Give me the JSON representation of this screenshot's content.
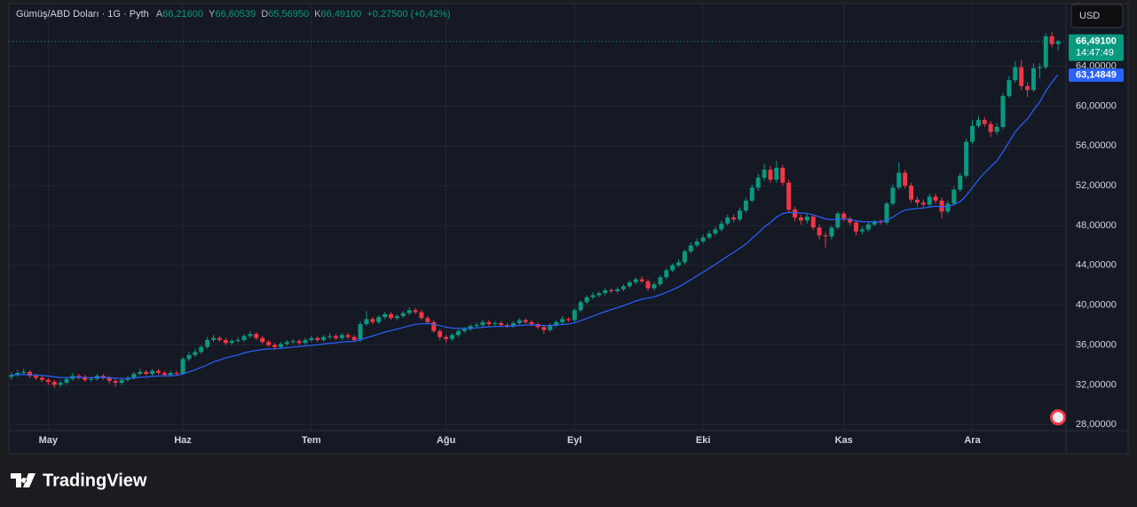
{
  "header": {
    "symbol": "Gümüş/ABD Doları · 1G · Pyth",
    "ohlc": [
      {
        "key": "A",
        "value": "66,21600"
      },
      {
        "key": "Y",
        "value": "66,60539"
      },
      {
        "key": "D",
        "value": "65,56950"
      },
      {
        "key": "K",
        "value": "66,49100"
      }
    ],
    "change": "+0,27500 (+0,42%)",
    "currency": "USD"
  },
  "footer": {
    "logo": "TradingView"
  },
  "chart_data": {
    "type": "candlestick",
    "up_color": "#089981",
    "down_color": "#f23645",
    "grid": true,
    "ylim": [
      27.4,
      70.2
    ],
    "yticks": [
      {
        "value": 28,
        "label": "28,00000"
      },
      {
        "value": 32,
        "label": "32,00000"
      },
      {
        "value": 36,
        "label": "36,00000"
      },
      {
        "value": 40,
        "label": "40,00000"
      },
      {
        "value": 44,
        "label": "44,00000"
      },
      {
        "value": 48,
        "label": "48,00000"
      },
      {
        "value": 52,
        "label": "52,00000"
      },
      {
        "value": 56,
        "label": "56,00000"
      },
      {
        "value": 60,
        "label": "60,00000"
      },
      {
        "value": 64,
        "label": "64,00000"
      }
    ],
    "categories": [
      null,
      null,
      null,
      null,
      null,
      null,
      "May",
      null,
      null,
      null,
      null,
      null,
      null,
      null,
      null,
      null,
      null,
      null,
      null,
      null,
      null,
      null,
      null,
      null,
      null,
      null,
      null,
      null,
      "Haz",
      null,
      null,
      null,
      null,
      null,
      null,
      null,
      null,
      null,
      null,
      null,
      null,
      null,
      null,
      null,
      null,
      null,
      null,
      null,
      null,
      "Tem",
      null,
      null,
      null,
      null,
      null,
      null,
      null,
      null,
      null,
      null,
      null,
      null,
      null,
      null,
      null,
      null,
      null,
      null,
      null,
      null,
      null,
      "Ağu",
      null,
      null,
      null,
      null,
      null,
      null,
      null,
      null,
      null,
      null,
      null,
      null,
      null,
      null,
      null,
      null,
      null,
      null,
      null,
      null,
      "Eyl",
      null,
      null,
      null,
      null,
      null,
      null,
      null,
      null,
      null,
      null,
      null,
      null,
      null,
      null,
      null,
      null,
      null,
      null,
      null,
      null,
      "Eki",
      null,
      null,
      null,
      null,
      null,
      null,
      null,
      null,
      null,
      null,
      null,
      null,
      null,
      null,
      null,
      null,
      null,
      null,
      null,
      null,
      null,
      null,
      "Kas",
      null,
      null,
      null,
      null,
      null,
      null,
      null,
      null,
      null,
      null,
      null,
      null,
      null,
      null,
      null,
      null,
      null,
      null,
      null,
      null,
      "Ara",
      null,
      null,
      null,
      null,
      null,
      null,
      null,
      null,
      null,
      null,
      null,
      null,
      null,
      null
    ],
    "open": [
      32.8,
      33.0,
      33.2,
      33.3,
      32.9,
      32.7,
      32.5,
      32.3,
      32.0,
      32.2,
      32.6,
      32.9,
      32.8,
      32.5,
      32.6,
      32.9,
      32.7,
      32.4,
      32.2,
      32.5,
      32.7,
      33.1,
      33.3,
      33.1,
      33.4,
      33.2,
      33.0,
      33.2,
      33.1,
      34.6,
      35.0,
      35.3,
      35.8,
      36.5,
      36.7,
      36.5,
      36.2,
      36.4,
      36.5,
      36.9,
      37.1,
      36.7,
      36.3,
      36.0,
      35.8,
      36.1,
      36.3,
      36.4,
      36.2,
      36.5,
      36.7,
      36.5,
      36.8,
      36.9,
      36.7,
      37.0,
      36.8,
      36.5,
      38.1,
      38.6,
      38.3,
      38.8,
      39.1,
      38.7,
      38.9,
      39.2,
      39.5,
      39.3,
      38.7,
      38.3,
      37.4,
      36.8,
      36.6,
      37.0,
      37.4,
      37.6,
      37.9,
      38.0,
      38.3,
      38.1,
      38.2,
      38.0,
      37.9,
      38.2,
      38.5,
      38.3,
      38.1,
      37.8,
      37.5,
      38.0,
      38.3,
      38.6,
      38.5,
      39.5,
      40.3,
      40.8,
      41.0,
      41.2,
      41.5,
      41.4,
      41.6,
      41.9,
      42.3,
      42.6,
      42.4,
      41.7,
      42.1,
      42.8,
      43.5,
      44.0,
      44.3,
      45.4,
      46.0,
      46.4,
      46.8,
      47.2,
      47.6,
      48.2,
      48.8,
      48.6,
      49.5,
      50.5,
      51.8,
      52.8,
      53.6,
      52.6,
      53.8,
      52.3,
      49.6,
      48.8,
      48.5,
      48.9,
      47.8,
      47.0,
      46.9,
      47.8,
      49.2,
      48.7,
      48.3,
      47.4,
      47.6,
      48.1,
      48.4,
      48.3,
      50.2,
      51.8,
      53.3,
      52.0,
      50.6,
      50.3,
      50.1,
      50.9,
      50.5,
      49.4,
      50.2,
      51.6,
      53.0,
      56.4,
      58.0,
      58.6,
      58.2,
      57.4,
      57.9,
      61.0,
      62.6,
      63.9,
      62.0,
      61.6,
      63.8,
      63.9,
      67.0,
      66.216
    ],
    "high": [
      33.3,
      33.5,
      33.6,
      33.5,
      33.1,
      32.9,
      32.7,
      32.5,
      32.4,
      32.8,
      33.2,
      33.1,
      33.0,
      32.8,
      33.1,
      33.1,
      32.9,
      32.6,
      32.7,
      32.9,
      33.3,
      33.6,
      33.5,
      33.6,
      33.6,
      33.4,
      33.4,
      33.4,
      34.8,
      35.3,
      35.6,
      36.0,
      36.8,
      37.0,
      36.9,
      36.7,
      36.6,
      36.8,
      37.1,
      37.4,
      37.3,
      36.9,
      36.5,
      36.2,
      36.3,
      36.5,
      36.6,
      36.6,
      36.7,
      36.9,
      36.9,
      37.0,
      37.2,
      37.1,
      37.2,
      37.2,
      37.0,
      38.4,
      39.4,
      38.8,
      39.0,
      39.3,
      39.3,
      39.1,
      39.4,
      39.8,
      39.7,
      39.5,
      38.9,
      38.5,
      37.6,
      37.0,
      37.2,
      37.6,
      37.8,
      38.1,
      38.3,
      38.5,
      38.5,
      38.4,
      38.4,
      38.2,
      38.4,
      38.7,
      38.7,
      38.5,
      38.3,
      38.0,
      38.2,
      38.5,
      38.9,
      38.8,
      39.7,
      40.5,
      41.0,
      41.3,
      41.4,
      41.7,
      41.7,
      41.8,
      42.1,
      42.5,
      42.8,
      42.9,
      42.6,
      42.3,
      43.0,
      43.7,
      44.2,
      44.6,
      45.6,
      46.3,
      46.7,
      47.1,
      47.5,
      47.9,
      48.5,
      49.1,
      49.1,
      49.8,
      50.8,
      52.1,
      53.2,
      54.2,
      54.0,
      54.5,
      54.1,
      52.6,
      49.9,
      49.1,
      49.2,
      49.1,
      48.1,
      47.3,
      48.0,
      49.4,
      49.4,
      48.9,
      48.5,
      47.9,
      48.3,
      48.6,
      48.6,
      50.4,
      52.1,
      54.3,
      53.6,
      52.3,
      50.9,
      50.6,
      51.2,
      51.2,
      50.8,
      50.5,
      51.9,
      53.3,
      56.7,
      58.6,
      59.0,
      58.9,
      58.5,
      58.3,
      61.3,
      63.0,
      64.5,
      64.6,
      62.4,
      64.3,
      64.3,
      67.3,
      67.4,
      66.60539
    ],
    "low": [
      32.5,
      32.8,
      33.0,
      32.7,
      32.5,
      32.3,
      32.0,
      31.7,
      31.8,
      32.0,
      32.4,
      32.5,
      32.3,
      32.3,
      32.4,
      32.5,
      32.1,
      31.8,
      32.0,
      32.3,
      32.5,
      32.9,
      32.9,
      32.9,
      33.0,
      32.8,
      32.8,
      32.9,
      33.0,
      34.4,
      34.8,
      35.1,
      35.6,
      36.3,
      36.3,
      36.0,
      36.0,
      36.2,
      36.3,
      36.7,
      36.5,
      36.1,
      35.8,
      35.5,
      35.6,
      35.9,
      36.1,
      36.0,
      36.0,
      36.3,
      36.3,
      36.3,
      36.6,
      36.5,
      36.5,
      36.6,
      36.3,
      36.3,
      37.9,
      38.1,
      38.1,
      38.6,
      38.5,
      38.5,
      38.7,
      39.0,
      39.1,
      38.5,
      38.1,
      37.2,
      36.5,
      36.2,
      36.4,
      36.8,
      37.2,
      37.4,
      37.7,
      37.8,
      37.9,
      37.9,
      37.8,
      37.7,
      37.7,
      38.0,
      38.1,
      37.9,
      37.6,
      37.1,
      37.3,
      37.8,
      38.1,
      38.3,
      38.3,
      39.3,
      40.1,
      40.6,
      40.8,
      41.0,
      41.2,
      41.2,
      41.4,
      41.7,
      42.1,
      42.2,
      41.4,
      41.5,
      41.9,
      42.6,
      43.3,
      43.8,
      44.1,
      45.2,
      45.8,
      46.2,
      46.6,
      47.0,
      47.4,
      48.0,
      48.3,
      48.4,
      49.3,
      50.3,
      51.5,
      52.5,
      52.3,
      52.3,
      52.0,
      49.3,
      48.4,
      48.1,
      48.2,
      47.5,
      46.6,
      45.8,
      46.6,
      47.6,
      48.4,
      48.0,
      47.0,
      47.1,
      47.4,
      47.9,
      48.1,
      48.1,
      50.0,
      51.6,
      51.7,
      50.3,
      49.9,
      49.8,
      49.9,
      50.2,
      48.7,
      49.2,
      50.0,
      51.4,
      52.8,
      56.2,
      57.8,
      57.9,
      56.9,
      57.1,
      57.7,
      60.8,
      62.3,
      61.6,
      60.9,
      61.4,
      62.8,
      63.7,
      65.9,
      65.5695
    ],
    "close": [
      33.0,
      33.2,
      33.3,
      32.9,
      32.7,
      32.5,
      32.3,
      32.0,
      32.2,
      32.6,
      32.9,
      32.8,
      32.5,
      32.6,
      32.9,
      32.7,
      32.4,
      32.2,
      32.5,
      32.7,
      33.1,
      33.3,
      33.1,
      33.4,
      33.2,
      33.0,
      33.2,
      33.1,
      34.6,
      35.0,
      35.3,
      35.8,
      36.5,
      36.7,
      36.5,
      36.2,
      36.4,
      36.5,
      36.9,
      37.1,
      36.7,
      36.3,
      36.0,
      35.8,
      36.1,
      36.3,
      36.4,
      36.2,
      36.5,
      36.7,
      36.5,
      36.8,
      36.9,
      36.7,
      37.0,
      36.8,
      36.5,
      38.1,
      38.6,
      38.3,
      38.8,
      39.1,
      38.7,
      38.9,
      39.2,
      39.5,
      39.3,
      38.7,
      38.3,
      37.4,
      36.8,
      36.6,
      37.0,
      37.4,
      37.6,
      37.9,
      38.0,
      38.3,
      38.1,
      38.2,
      38.0,
      37.9,
      38.2,
      38.5,
      38.3,
      38.1,
      37.8,
      37.5,
      38.0,
      38.3,
      38.6,
      38.5,
      39.5,
      40.3,
      40.8,
      41.0,
      41.2,
      41.5,
      41.4,
      41.6,
      41.9,
      42.3,
      42.6,
      42.4,
      41.7,
      42.1,
      42.8,
      43.5,
      44.0,
      44.3,
      45.4,
      46.0,
      46.4,
      46.8,
      47.2,
      47.6,
      48.2,
      48.8,
      48.6,
      49.5,
      50.5,
      51.8,
      52.8,
      53.6,
      52.6,
      53.8,
      52.3,
      49.6,
      48.8,
      48.5,
      48.9,
      47.8,
      47.0,
      46.9,
      47.8,
      49.2,
      48.7,
      48.3,
      47.4,
      47.6,
      48.1,
      48.4,
      48.3,
      50.2,
      51.8,
      53.3,
      52.0,
      50.6,
      50.3,
      50.1,
      50.9,
      50.5,
      49.4,
      50.2,
      51.6,
      53.0,
      56.4,
      58.0,
      58.6,
      58.2,
      57.4,
      57.9,
      61.0,
      62.6,
      63.9,
      62.0,
      61.6,
      63.8,
      63.9,
      67.0,
      66.22,
      66.491
    ],
    "last_price_label": "66,49100",
    "countdown": "14:47:49",
    "ma": {
      "color": "#2962ff",
      "value_label": "63,14849",
      "values": [
        33.0,
        33.0,
        33.05,
        33.0,
        32.98,
        32.94,
        32.88,
        32.8,
        32.74,
        32.73,
        32.75,
        32.76,
        32.73,
        32.72,
        32.74,
        32.74,
        32.71,
        32.66,
        32.64,
        32.65,
        32.7,
        32.76,
        32.79,
        32.85,
        32.88,
        32.89,
        32.92,
        32.94,
        33.1,
        33.3,
        33.5,
        33.75,
        34.0,
        34.3,
        34.5,
        34.7,
        34.85,
        35.0,
        35.2,
        35.35,
        35.45,
        35.55,
        35.6,
        35.62,
        35.67,
        35.73,
        35.8,
        35.84,
        35.9,
        35.97,
        36.02,
        36.1,
        36.17,
        36.22,
        36.3,
        36.35,
        36.36,
        36.54,
        36.74,
        36.9,
        37.1,
        37.3,
        37.45,
        37.6,
        37.76,
        37.93,
        38.07,
        38.13,
        38.15,
        38.07,
        37.95,
        37.8,
        37.7,
        37.67,
        37.66,
        37.68,
        37.72,
        37.78,
        37.82,
        37.86,
        37.87,
        37.88,
        37.91,
        37.97,
        38.0,
        38.01,
        37.99,
        37.95,
        37.96,
        38.0,
        38.06,
        38.1,
        38.24,
        38.44,
        38.67,
        38.9,
        39.13,
        39.35,
        39.55,
        39.74,
        39.95,
        40.18,
        40.42,
        40.6,
        40.71,
        40.84,
        41.04,
        41.28,
        41.55,
        41.83,
        42.18,
        42.56,
        42.94,
        43.32,
        43.7,
        44.1,
        44.5,
        44.92,
        45.3,
        45.7,
        46.15,
        46.7,
        47.25,
        47.85,
        48.3,
        48.85,
        49.2,
        49.3,
        49.3,
        49.25,
        49.22,
        49.08,
        48.87,
        48.67,
        48.58,
        48.64,
        48.64,
        48.6,
        48.48,
        48.39,
        48.36,
        48.37,
        48.36,
        48.53,
        48.83,
        49.28,
        49.55,
        49.65,
        49.71,
        49.75,
        49.86,
        49.92,
        49.88,
        49.92,
        50.1,
        50.4,
        51.0,
        51.8,
        52.6,
        53.3,
        53.9,
        54.5,
        55.4,
        56.4,
        57.4,
        58.1,
        58.7,
        59.6,
        60.4,
        61.5,
        62.4,
        63.14849
      ]
    }
  }
}
